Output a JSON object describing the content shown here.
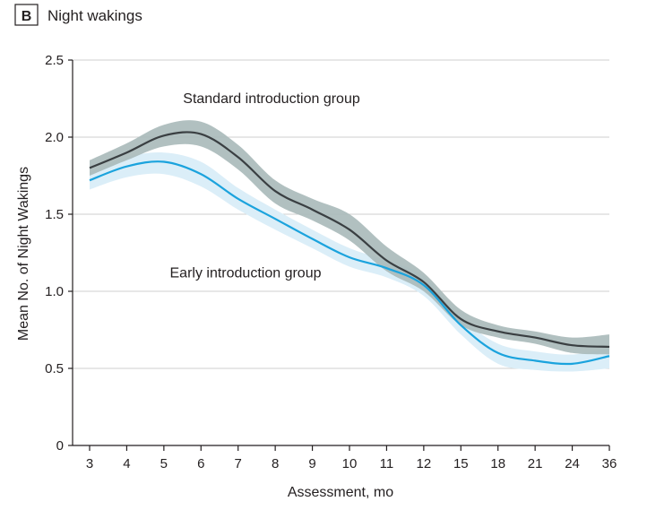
{
  "panel": {
    "letter": "B",
    "title": "Night wakings"
  },
  "chart_data": {
    "type": "line",
    "title": "Night wakings",
    "xlabel": "Assessment, mo",
    "ylabel": "Mean No. of Night Wakings",
    "categories": [
      "3",
      "4",
      "5",
      "6",
      "7",
      "8",
      "9",
      "10",
      "11",
      "12",
      "15",
      "18",
      "21",
      "24",
      "36"
    ],
    "ylim": [
      0,
      2.5
    ],
    "yticks": [
      0,
      0.5,
      1.0,
      1.5,
      2.0,
      2.5
    ],
    "ytick_labels": [
      "0",
      "0.5",
      "1.0",
      "1.5",
      "2.0",
      "2.5"
    ],
    "grid": "horizontal",
    "legend": "none (inline labels)",
    "colors": {
      "standard_line": "#3a3f42",
      "standard_band": "#a9b9b9",
      "early_line": "#1ba3dd",
      "early_band": "#dbeef8",
      "gridline": "#cfcfcf"
    },
    "series": [
      {
        "name": "Standard introduction group",
        "values": [
          1.8,
          1.9,
          2.01,
          2.02,
          1.87,
          1.65,
          1.53,
          1.4,
          1.2,
          1.06,
          0.82,
          0.74,
          0.7,
          0.65,
          0.64
        ],
        "lower": [
          1.75,
          1.85,
          1.94,
          1.94,
          1.79,
          1.57,
          1.46,
          1.33,
          1.13,
          1.0,
          0.78,
          0.7,
          0.66,
          0.6,
          0.59
        ],
        "upper": [
          1.85,
          1.96,
          2.08,
          2.1,
          1.95,
          1.72,
          1.6,
          1.5,
          1.29,
          1.12,
          0.88,
          0.78,
          0.74,
          0.7,
          0.72
        ],
        "label_at": [
          4.9,
          2.25
        ]
      },
      {
        "name": "Early introduction group",
        "values": [
          1.72,
          1.81,
          1.84,
          1.76,
          1.6,
          1.47,
          1.34,
          1.22,
          1.15,
          1.04,
          0.78,
          0.6,
          0.55,
          0.53,
          0.58
        ],
        "lower": [
          1.66,
          1.74,
          1.76,
          1.68,
          1.53,
          1.4,
          1.28,
          1.16,
          1.09,
          0.97,
          0.72,
          0.53,
          0.49,
          0.48,
          0.5
        ],
        "upper": [
          1.77,
          1.87,
          1.9,
          1.84,
          1.67,
          1.53,
          1.4,
          1.28,
          1.2,
          1.1,
          0.83,
          0.66,
          0.61,
          0.59,
          0.63
        ],
        "label_at": [
          4.2,
          1.12
        ]
      }
    ]
  }
}
